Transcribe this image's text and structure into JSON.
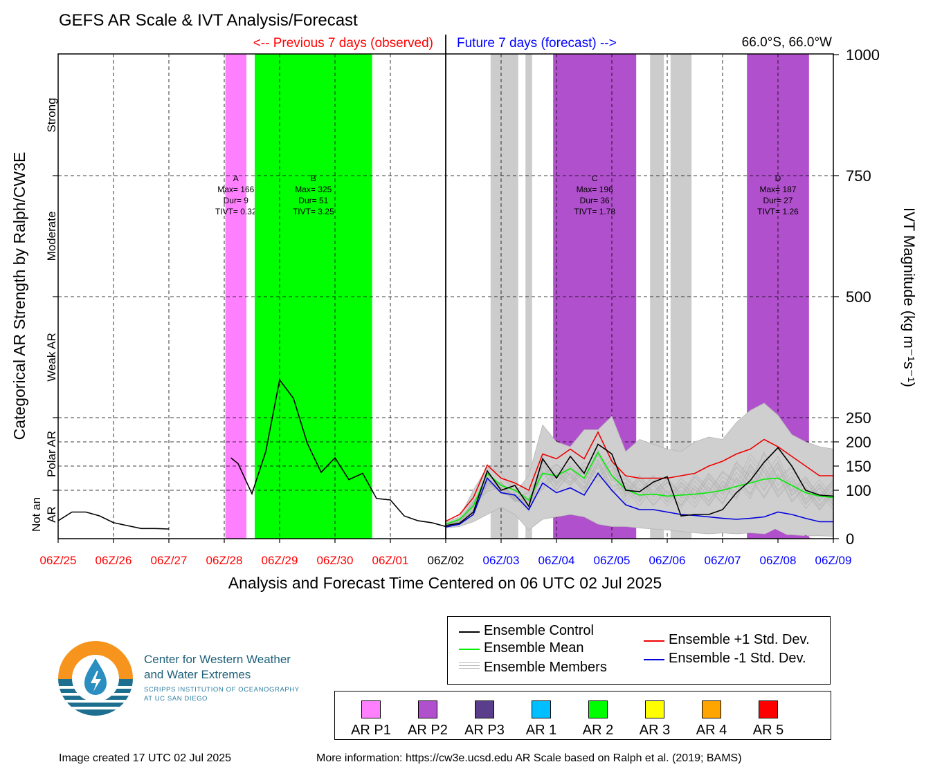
{
  "title": "GEFS AR Scale & IVT Analysis/Forecast",
  "header": {
    "previous_label": "<-- Previous 7 days (observed)",
    "future_label": "Future 7 days (forecast) -->",
    "location": "66.0°S, 66.0°W"
  },
  "colors": {
    "previous": "#ff0000",
    "future": "#0000ff",
    "ar_p1": "#ff80ff",
    "ar_p2": "#b050cc",
    "ar_p3": "#5a3e8c",
    "ar_1": "#00bfff",
    "ar_2": "#00ff00",
    "ar_3": "#ffff00",
    "ar_4": "#ffa500",
    "ar_5": "#ff0000",
    "members_shade": "#cccccc",
    "control": "#000000",
    "mean": "#00ee00",
    "plus_sd": "#ee0000",
    "minus_sd": "#0000dd"
  },
  "chart_data": {
    "type": "line",
    "xlabel": "Analysis and Forecast Time Centered on 06 UTC 02 Jul 2025",
    "ylabel_left": "Categorical AR Strength by Ralph/CW3E",
    "ylabel_right": "IVT Magnitude (kg m⁻¹s⁻¹)",
    "ylim": [
      0,
      1000
    ],
    "x_range_days": [
      -7,
      7
    ],
    "x_ticks": [
      {
        "label": "06Z/25",
        "day": -7,
        "period": "previous"
      },
      {
        "label": "06Z/26",
        "day": -6,
        "period": "previous"
      },
      {
        "label": "06Z/27",
        "day": -5,
        "period": "previous"
      },
      {
        "label": "06Z/28",
        "day": -4,
        "period": "previous"
      },
      {
        "label": "06Z/29",
        "day": -3,
        "period": "previous"
      },
      {
        "label": "06Z/30",
        "day": -2,
        "period": "previous"
      },
      {
        "label": "06Z/01",
        "day": -1,
        "period": "previous"
      },
      {
        "label": "06Z/02",
        "day": 0,
        "period": "now"
      },
      {
        "label": "06Z/03",
        "day": 1,
        "period": "future"
      },
      {
        "label": "06Z/04",
        "day": 2,
        "period": "future"
      },
      {
        "label": "06Z/05",
        "day": 3,
        "period": "future"
      },
      {
        "label": "06Z/06",
        "day": 4,
        "period": "future"
      },
      {
        "label": "06Z/07",
        "day": 5,
        "period": "future"
      },
      {
        "label": "06Z/08",
        "day": 6,
        "period": "future"
      },
      {
        "label": "06Z/09",
        "day": 7,
        "period": "future"
      }
    ],
    "y_ticks": [
      {
        "label": "0",
        "value": 0
      },
      {
        "label": "100",
        "value": 100
      },
      {
        "label": "150",
        "value": 150
      },
      {
        "label": "200",
        "value": 200
      },
      {
        "label": "250",
        "value": 250
      },
      {
        "label": "500",
        "value": 500
      },
      {
        "label": "750",
        "value": 750
      },
      {
        "label": "1000",
        "value": 1000
      }
    ],
    "categories": [
      {
        "label": "Not an AR",
        "lines": [
          "Not an",
          "AR"
        ],
        "from": 0,
        "to": 100
      },
      {
        "label": "Polar AR",
        "lines": [
          "Polar AR"
        ],
        "from": 100,
        "to": 250
      },
      {
        "label": "Weak AR",
        "lines": [
          "Weak AR"
        ],
        "from": 250,
        "to": 500
      },
      {
        "label": "Moderate",
        "lines": [
          "Moderate"
        ],
        "from": 500,
        "to": 750
      },
      {
        "label": "Strong",
        "lines": [
          "Strong"
        ],
        "from": 750,
        "to": 1000
      }
    ],
    "ar_events": [
      {
        "id": "A",
        "category": "ar_p1",
        "start": -3.98,
        "end": -3.6,
        "max": "Max= 166",
        "dur": "Dur= 9",
        "tivt": "TIVT= 0.32"
      },
      {
        "id": "B",
        "category": "ar_2",
        "start": -3.45,
        "end": -1.33,
        "max": "Max= 325",
        "dur": "Dur= 51",
        "tivt": "TIVT= 3.25"
      },
      {
        "id": "C",
        "category": "ar_p2",
        "start": 1.94,
        "end": 3.44,
        "max": "Max= 196",
        "dur": "Dur= 36",
        "tivt": "TIVT= 1.78"
      },
      {
        "id": "D",
        "category": "ar_p2",
        "start": 5.44,
        "end": 6.56,
        "max": "Max= 187",
        "dur": "Dur= 27",
        "tivt": "TIVT= 1.26"
      }
    ],
    "member_ar_bands": [
      {
        "start": 0.81,
        "end": 1.31
      },
      {
        "start": 1.44,
        "end": 1.56
      },
      {
        "start": 3.69,
        "end": 3.94
      },
      {
        "start": 4.06,
        "end": 4.44
      }
    ],
    "member_ar_bumps": [
      {
        "start": 5.6,
        "end": 6.3,
        "peak": 20
      },
      {
        "start": 6.4,
        "end": 6.6,
        "peak": 8
      }
    ],
    "observed": {
      "name": "Ensemble Control",
      "segments": [
        {
          "x": [
            -7,
            -6.75,
            -6.5,
            -6.25,
            -6,
            -5.75,
            -5.5,
            -5.25,
            -5
          ],
          "y": [
            37,
            55,
            55,
            47,
            33,
            27,
            21,
            21,
            20
          ]
        },
        {
          "x": [
            -3.88,
            -3.75,
            -3.5,
            -3.25,
            -3,
            -2.75,
            -2.5,
            -2.25,
            -2,
            -1.75,
            -1.5,
            -1.25,
            -1,
            -0.75,
            -0.5,
            -0.25,
            0
          ],
          "y": [
            167,
            155,
            93,
            180,
            328,
            290,
            197,
            137,
            167,
            122,
            135,
            83,
            80,
            47,
            37,
            33,
            25
          ]
        }
      ]
    },
    "forecast": {
      "x": [
        0,
        0.25,
        0.5,
        0.75,
        1,
        1.25,
        1.5,
        1.75,
        2,
        2.25,
        2.5,
        2.75,
        3,
        3.25,
        3.5,
        3.75,
        4,
        4.25,
        4.5,
        4.75,
        5,
        5.25,
        5.5,
        5.75,
        6,
        6.25,
        6.5,
        6.75,
        7
      ],
      "series": [
        {
          "key": "members_max",
          "name": "Ensemble Members",
          "values": [
            34,
            45,
            100,
            148,
            135,
            95,
            130,
            235,
            200,
            190,
            225,
            225,
            253,
            180,
            205,
            195,
            185,
            180,
            200,
            210,
            205,
            240,
            265,
            280,
            255,
            215,
            200,
            190,
            185
          ]
        },
        {
          "key": "members_min",
          "name": "Ensemble Members",
          "values": [
            22,
            25,
            35,
            50,
            65,
            50,
            18,
            40,
            45,
            50,
            45,
            30,
            25,
            25,
            22,
            20,
            18,
            15,
            12,
            10,
            12,
            10,
            12,
            10,
            8,
            8,
            6,
            6,
            5
          ]
        },
        {
          "key": "control",
          "name": "Ensemble Control",
          "values": [
            27,
            32,
            55,
            140,
            100,
            110,
            67,
            165,
            125,
            170,
            135,
            195,
            175,
            100,
            97,
            117,
            128,
            47,
            50,
            50,
            60,
            95,
            120,
            158,
            188,
            150,
            100,
            90,
            88
          ]
        },
        {
          "key": "mean",
          "name": "Ensemble Mean",
          "values": [
            30,
            40,
            68,
            135,
            110,
            100,
            80,
            135,
            130,
            145,
            125,
            178,
            130,
            102,
            90,
            92,
            88,
            90,
            92,
            95,
            100,
            108,
            115,
            123,
            125,
            110,
            95,
            88,
            85
          ]
        },
        {
          "key": "plus_sd",
          "name": "Ensemble +1 Std. Dev.",
          "values": [
            36,
            50,
            85,
            152,
            125,
            115,
            100,
            175,
            165,
            185,
            165,
            220,
            160,
            130,
            125,
            125,
            125,
            130,
            135,
            150,
            160,
            175,
            185,
            205,
            190,
            170,
            150,
            130,
            130
          ]
        },
        {
          "key": "minus_sd",
          "name": "Ensemble -1 Std. Dev.",
          "values": [
            24,
            30,
            50,
            125,
            95,
            90,
            60,
            115,
            95,
            105,
            90,
            135,
            100,
            70,
            60,
            60,
            55,
            50,
            48,
            45,
            42,
            40,
            42,
            45,
            55,
            50,
            42,
            35,
            35
          ]
        }
      ]
    }
  },
  "legend": {
    "control": "Ensemble Control",
    "mean": "Ensemble Mean",
    "members": "Ensemble Members",
    "plus_sd": "Ensemble +1 Std. Dev.",
    "minus_sd": "Ensemble -1 Std. Dev."
  },
  "ar_scale_legend": [
    {
      "key": "ar_p1",
      "label": "AR P1"
    },
    {
      "key": "ar_p2",
      "label": "AR P2"
    },
    {
      "key": "ar_p3",
      "label": "AR P3"
    },
    {
      "key": "ar_1",
      "label": "AR 1"
    },
    {
      "key": "ar_2",
      "label": "AR 2"
    },
    {
      "key": "ar_3",
      "label": "AR 3"
    },
    {
      "key": "ar_4",
      "label": "AR 4"
    },
    {
      "key": "ar_5",
      "label": "AR 5"
    }
  ],
  "logo": {
    "line1": "Center for Western Weather",
    "line2": "and Water Extremes",
    "line3": "SCRIPPS INSTITUTION OF OCEANOGRAPHY",
    "line4": "AT UC SAN DIEGO"
  },
  "footer": {
    "created": "Image created 17 UTC 02 Jul 2025",
    "info": "More information: https://cw3e.ucsd.edu AR Scale based on Ralph et al. (2019; BAMS)"
  }
}
